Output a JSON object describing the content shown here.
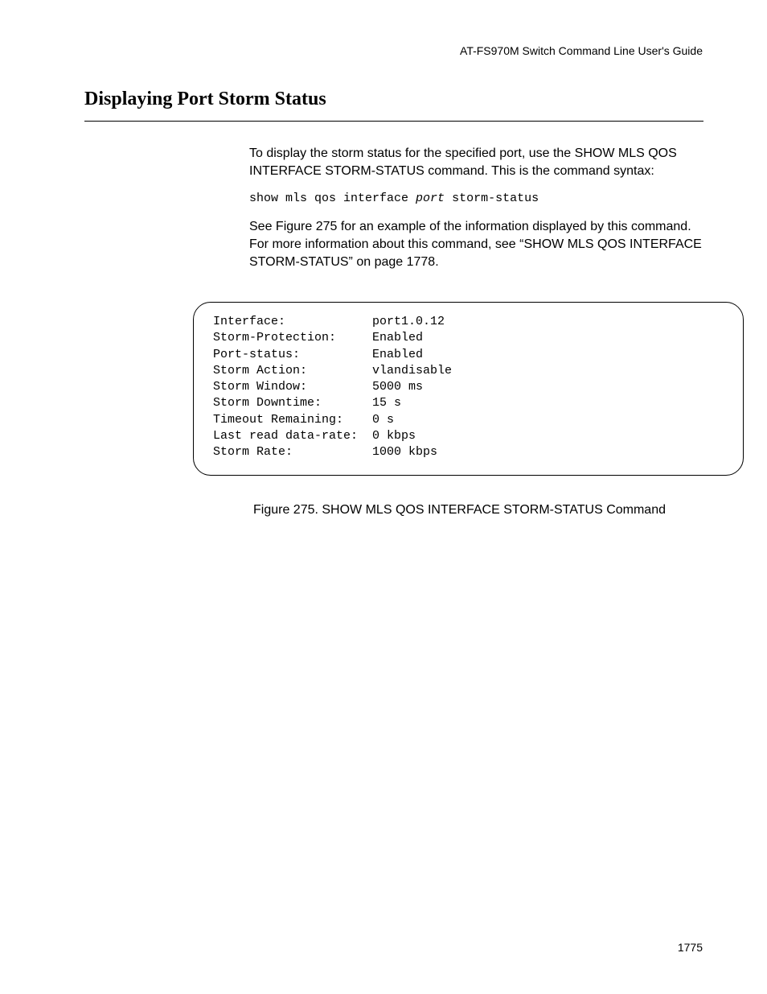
{
  "header": "AT-FS970M Switch Command Line User's Guide",
  "section_title": "Displaying Port Storm Status",
  "para1": "To display the storm status for the specified port, use the SHOW MLS QOS INTERFACE STORM-STATUS command. This is the command syntax:",
  "cmd_prefix": "show mls qos interface ",
  "cmd_italic": "port",
  "cmd_suffix": " storm-status",
  "para2": "See Figure 275 for an example of the information displayed by this command. For more information about this command, see “SHOW MLS QOS INTERFACE STORM-STATUS” on page 1778.",
  "output_rows": [
    {
      "label": "Interface:",
      "value": "port1.0.12"
    },
    {
      "label": "Storm-Protection:",
      "value": "Enabled"
    },
    {
      "label": "Port-status:",
      "value": "Enabled"
    },
    {
      "label": "Storm Action:",
      "value": "vlandisable"
    },
    {
      "label": "Storm Window:",
      "value": "5000 ms"
    },
    {
      "label": "Storm Downtime:",
      "value": "15 s"
    },
    {
      "label": "Timeout Remaining:",
      "value": "0 s"
    },
    {
      "label": "Last read data-rate:",
      "value": "0 kbps"
    },
    {
      "label": "Storm Rate:",
      "value": "1000 kbps"
    }
  ],
  "output_label_width": 21,
  "figure_caption": "Figure 275. SHOW MLS QOS INTERFACE STORM-STATUS Command",
  "page_number": "1775"
}
